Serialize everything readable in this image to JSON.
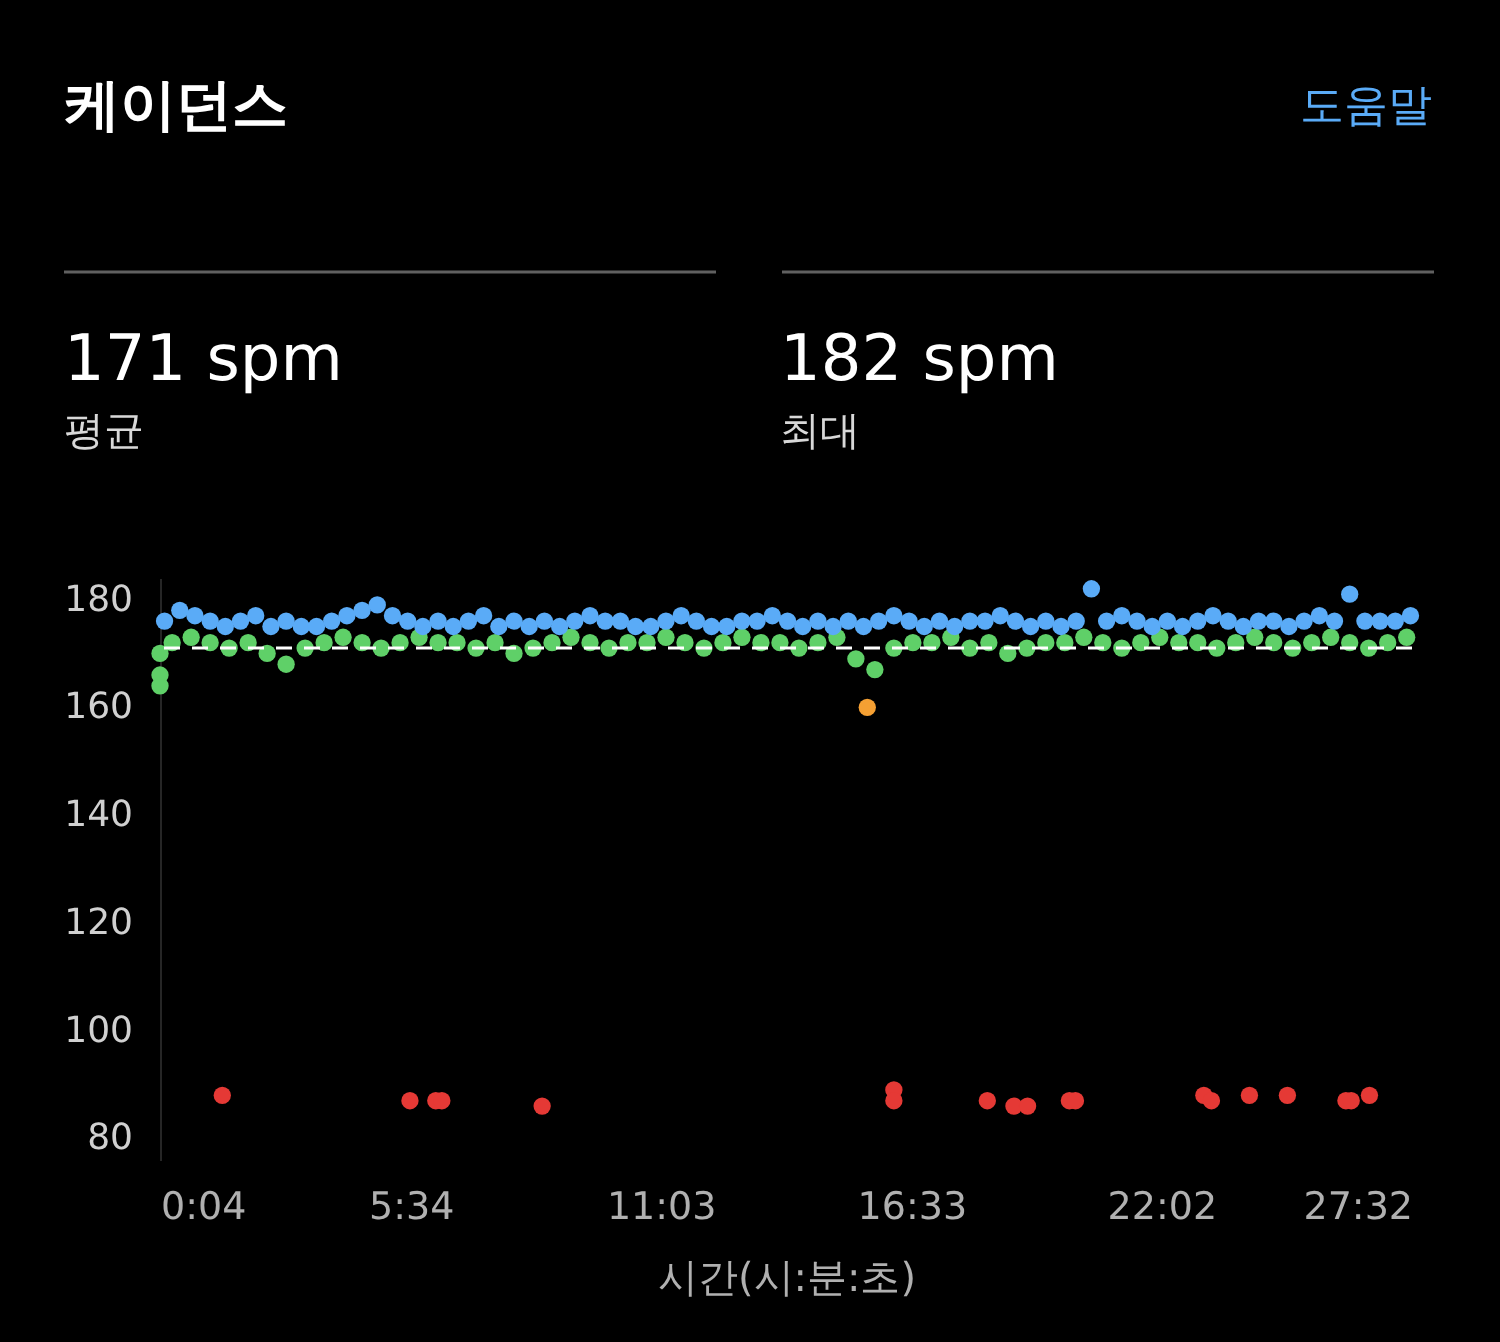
{
  "chart_data": {
    "type": "scatter",
    "title": "케이던스",
    "xlabel": "시간(시:분:초)",
    "annotations": [
      "도움말",
      "171 spm",
      "평균",
      "182 spm",
      "최대"
    ],
    "xlim": [
      4,
      1652
    ],
    "ylim": [
      76,
      184
    ],
    "xticks": [
      {
        "value": 4,
        "label": "0:04"
      },
      {
        "value": 334,
        "label": "5:34"
      },
      {
        "value": 663,
        "label": "11:03"
      },
      {
        "value": 993,
        "label": "16:33"
      },
      {
        "value": 1322,
        "label": "22:02"
      },
      {
        "value": 1652,
        "label": "27:32"
      }
    ],
    "yticks": [
      80,
      100,
      120,
      140,
      160,
      180
    ],
    "grid": false,
    "marker": "circle",
    "ref_lines": [
      {
        "axis": "y",
        "value": 171,
        "color": "#ffffff",
        "line_style": "dashed"
      }
    ],
    "series": [
      {
        "color": "#5fd068",
        "x": [
          4,
          4,
          4,
          20,
          45,
          70,
          95,
          120,
          145,
          170,
          195,
          220,
          245,
          270,
          295,
          320,
          345,
          370,
          395,
          420,
          445,
          470,
          495,
          520,
          545,
          570,
          595,
          620,
          645,
          670,
          695,
          720,
          745,
          770,
          795,
          820,
          845,
          870,
          895,
          920,
          945,
          970,
          995,
          1020,
          1045,
          1070,
          1095,
          1120,
          1145,
          1170,
          1195,
          1220,
          1245,
          1270,
          1295,
          1320,
          1345,
          1370,
          1395,
          1420,
          1445,
          1470,
          1495,
          1520,
          1545,
          1570,
          1595,
          1620,
          1645
        ],
        "values": [
          170,
          166,
          164,
          172,
          173,
          172,
          171,
          172,
          170,
          168,
          171,
          172,
          173,
          172,
          171,
          172,
          173,
          172,
          172,
          171,
          172,
          170,
          171,
          172,
          173,
          172,
          171,
          172,
          172,
          173,
          172,
          171,
          172,
          173,
          172,
          172,
          171,
          172,
          173,
          169,
          167,
          171,
          172,
          172,
          173,
          171,
          172,
          170,
          171,
          172,
          172,
          173,
          172,
          171,
          172,
          173,
          172,
          172,
          171,
          172,
          173,
          172,
          171,
          172,
          173,
          172,
          171,
          172,
          173
        ]
      },
      {
        "color": "#5aabf7",
        "x": [
          10,
          30,
          50,
          70,
          90,
          110,
          130,
          150,
          170,
          190,
          210,
          230,
          250,
          270,
          290,
          310,
          330,
          350,
          370,
          390,
          410,
          430,
          450,
          470,
          490,
          510,
          530,
          550,
          570,
          590,
          610,
          630,
          650,
          670,
          690,
          710,
          730,
          750,
          770,
          790,
          810,
          830,
          850,
          870,
          890,
          910,
          930,
          950,
          970,
          990,
          1010,
          1030,
          1050,
          1070,
          1090,
          1110,
          1130,
          1150,
          1170,
          1190,
          1210,
          1230,
          1250,
          1270,
          1290,
          1310,
          1330,
          1350,
          1370,
          1390,
          1410,
          1430,
          1450,
          1470,
          1490,
          1510,
          1530,
          1550,
          1570,
          1590,
          1610,
          1630,
          1650
        ],
        "values": [
          176,
          178,
          177,
          176,
          175,
          176,
          177,
          175,
          176,
          175,
          175,
          176,
          177,
          178,
          179,
          177,
          176,
          175,
          176,
          175,
          176,
          177,
          175,
          176,
          175,
          176,
          175,
          176,
          177,
          176,
          176,
          175,
          175,
          176,
          177,
          176,
          175,
          175,
          176,
          176,
          177,
          176,
          175,
          176,
          175,
          176,
          175,
          176,
          177,
          176,
          175,
          176,
          175,
          176,
          176,
          177,
          176,
          175,
          176,
          175,
          176,
          182,
          176,
          177,
          176,
          175,
          176,
          175,
          176,
          177,
          176,
          175,
          176,
          176,
          175,
          176,
          177,
          176,
          181,
          176,
          176,
          176,
          177
        ]
      },
      {
        "color": "#f5a033",
        "x": [
          935
        ],
        "values": [
          160
        ]
      },
      {
        "color": "#e53935",
        "x": [
          86,
          333,
          367,
          375,
          507,
          970,
          970,
          1093,
          1128,
          1146,
          1201,
          1209,
          1378,
          1388,
          1438,
          1488,
          1565,
          1572,
          1596
        ],
        "values": [
          88,
          87,
          87,
          87,
          86,
          89,
          87,
          87,
          86,
          86,
          87,
          87,
          88,
          87,
          88,
          88,
          87,
          87,
          88
        ]
      }
    ]
  }
}
